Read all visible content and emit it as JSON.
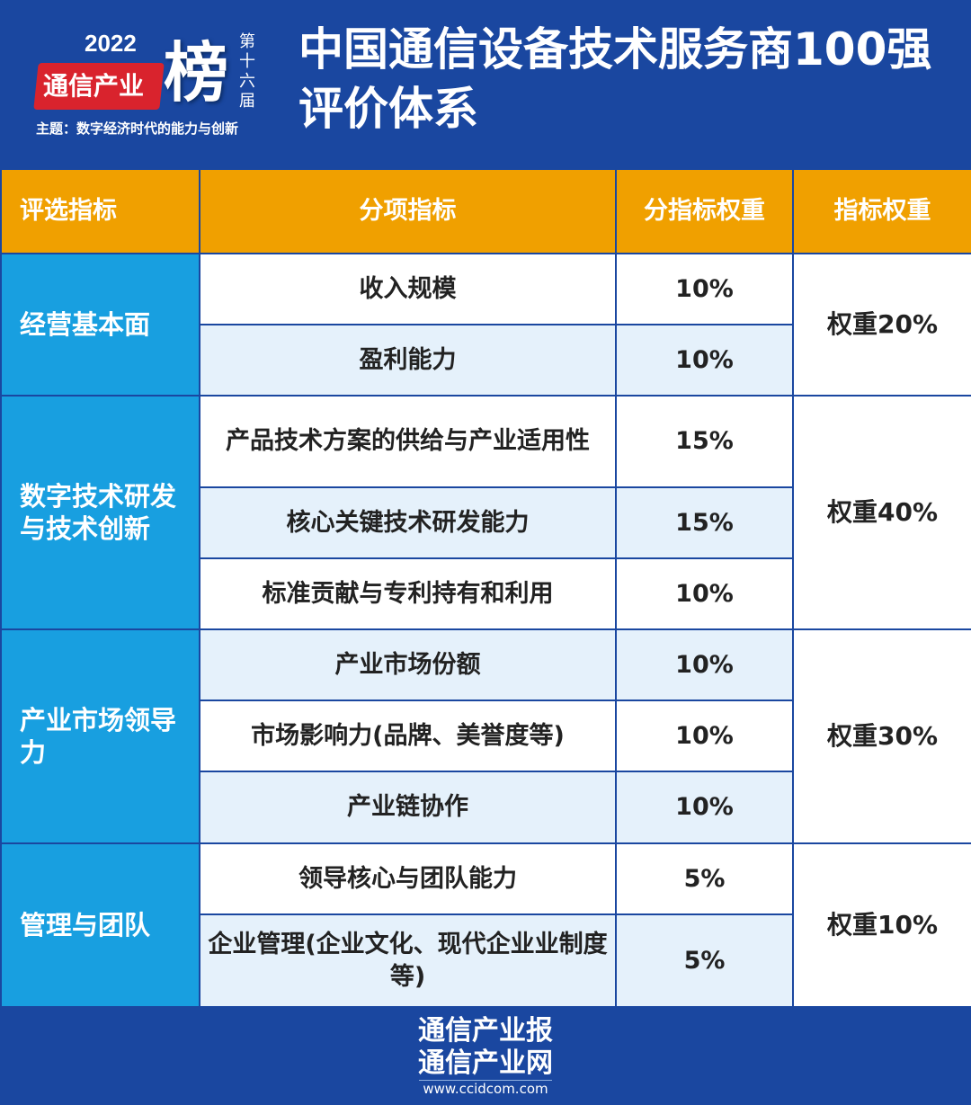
{
  "logo": {
    "year": "2022",
    "name": "通信产业",
    "big": "榜",
    "edition": "第十六届",
    "theme": "主题：数字经济时代的能力与创新"
  },
  "title": "中国通信设备技术服务商100强评价体系",
  "headers": [
    "评选指标",
    "分项指标",
    "分指标权重",
    "指标权重"
  ],
  "groups": [
    {
      "category": "经营基本面",
      "weight": "权重20%",
      "items": [
        {
          "name": "收入规模",
          "pct": "10%"
        },
        {
          "name": "盈利能力",
          "pct": "10%"
        }
      ]
    },
    {
      "category": "数字技术研发与技术创新",
      "weight": "权重40%",
      "items": [
        {
          "name": "产品技术方案的供给与产业适用性",
          "pct": "15%"
        },
        {
          "name": "核心关键技术研发能力",
          "pct": "15%"
        },
        {
          "name": "标准贡献与专利持有和利用",
          "pct": "10%"
        }
      ]
    },
    {
      "category": "产业市场领导力",
      "weight": "权重30%",
      "items": [
        {
          "name": "产业市场份额",
          "pct": "10%"
        },
        {
          "name": "市场影响力(品牌、美誉度等)",
          "pct": "10%"
        },
        {
          "name": "产业链协作",
          "pct": "10%"
        }
      ]
    },
    {
      "category": "管理与团队",
      "weight": "权重10%",
      "items": [
        {
          "name": "领导核心与团队能力",
          "pct": "5%"
        },
        {
          "name": "企业管理(企业文化、现代企业业制度等)",
          "pct": "5%"
        }
      ]
    }
  ],
  "footer": {
    "line1": "通信产业报",
    "line2": "通信产业网",
    "url": "www.ccidcom.com"
  },
  "colors": {
    "background": "#1a47a0",
    "header_row": "#f0a000",
    "category_cell": "#189fe0",
    "alt_row": "#e5f1fb",
    "logo_red": "#d9232d"
  }
}
